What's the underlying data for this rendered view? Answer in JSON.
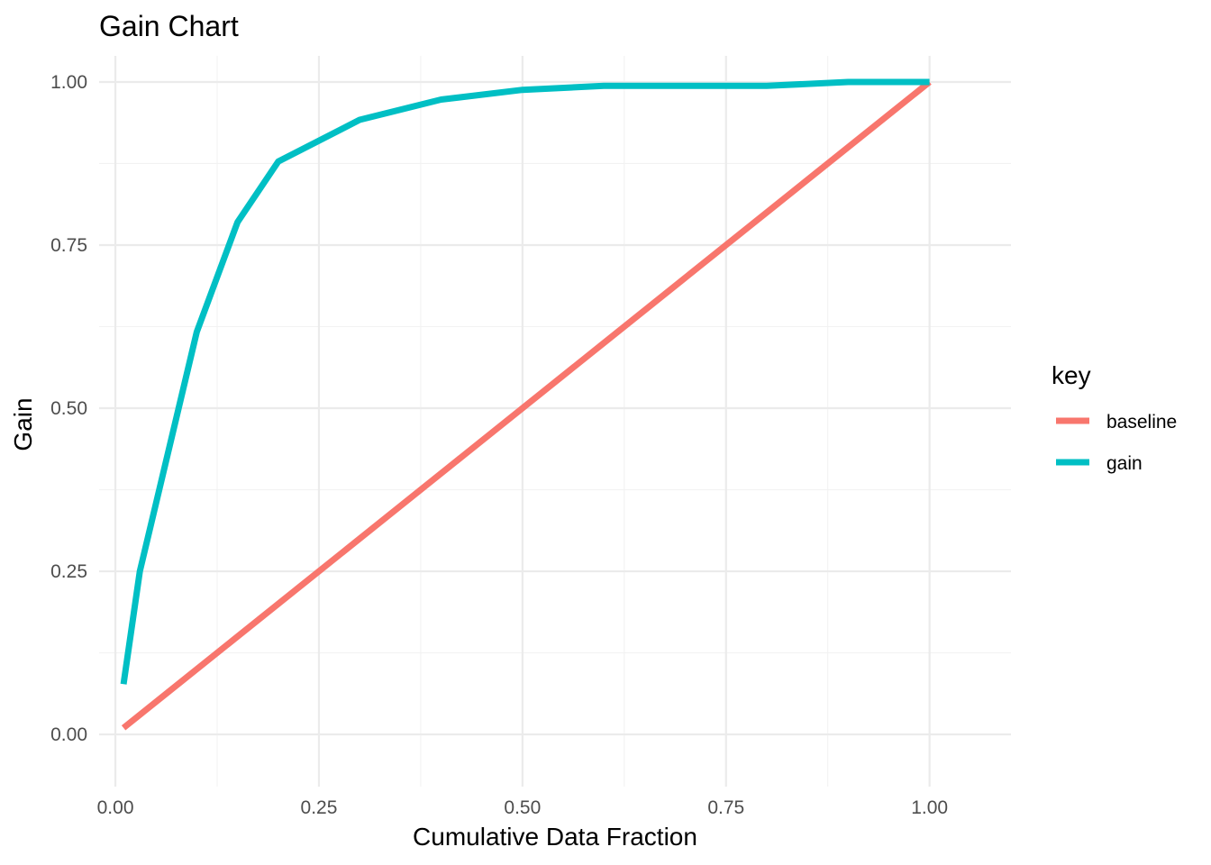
{
  "chart_data": {
    "type": "line",
    "title": "Gain Chart",
    "xlabel": "Cumulative Data Fraction",
    "ylabel": "Gain",
    "xlim": [
      -0.02,
      1.1
    ],
    "ylim": [
      -0.08,
      1.04
    ],
    "x_ticks": [
      0,
      0.25,
      0.5,
      0.75,
      1
    ],
    "x_tick_labels": [
      "0.00",
      "0.25",
      "0.50",
      "0.75",
      "1.00"
    ],
    "y_ticks": [
      0,
      0.25,
      0.5,
      0.75,
      1
    ],
    "y_tick_labels": [
      "0.00",
      "0.25",
      "0.50",
      "0.75",
      "1.00"
    ],
    "x_minor": [
      0.125,
      0.375,
      0.625,
      0.875
    ],
    "y_minor": [
      0.125,
      0.375,
      0.625,
      0.875
    ],
    "grid": true,
    "legend": {
      "title": "key",
      "position": "right"
    },
    "series": [
      {
        "name": "baseline",
        "color": "#F8766D",
        "points": [
          {
            "x": 0.01,
            "y": 0.01
          },
          {
            "x": 1.0,
            "y": 1.0
          }
        ]
      },
      {
        "name": "gain",
        "color": "#00BFC4",
        "points": [
          {
            "x": 0.01,
            "y": 0.077
          },
          {
            "x": 0.03,
            "y": 0.25
          },
          {
            "x": 0.05,
            "y": 0.355
          },
          {
            "x": 0.1,
            "y": 0.617
          },
          {
            "x": 0.15,
            "y": 0.785
          },
          {
            "x": 0.2,
            "y": 0.878
          },
          {
            "x": 0.3,
            "y": 0.942
          },
          {
            "x": 0.4,
            "y": 0.973
          },
          {
            "x": 0.5,
            "y": 0.988
          },
          {
            "x": 0.6,
            "y": 0.994
          },
          {
            "x": 0.7,
            "y": 0.994
          },
          {
            "x": 0.8,
            "y": 0.994
          },
          {
            "x": 0.9,
            "y": 1.0
          },
          {
            "x": 1.0,
            "y": 1.0
          }
        ]
      }
    ]
  }
}
